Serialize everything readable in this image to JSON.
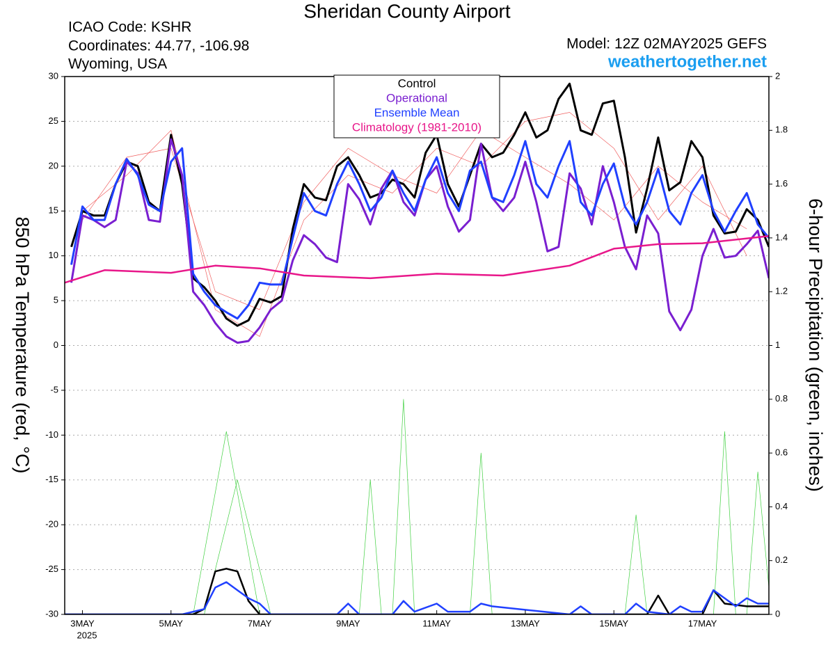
{
  "chart_data": {
    "type": "line",
    "title": "Sheridan County Airport",
    "info": [
      "ICAO Code: KSHR",
      "Coordinates: 44.77, -106.98",
      "Wyoming, USA"
    ],
    "model": "Model: 12Z 02MAY2025 GEFS",
    "site": "weathertogether.net",
    "ylabel": "850 hPa Temperature (red, °C)",
    "y2label": "6-hour Precipitation (green, inches)",
    "year_label": "2025",
    "grid": true,
    "xlim": [
      2.6,
      18.5
    ],
    "xticks": [
      {
        "value": 3,
        "label": "3MAY"
      },
      {
        "value": 5,
        "label": "5MAY"
      },
      {
        "value": 7,
        "label": "7MAY"
      },
      {
        "value": 9,
        "label": "9MAY"
      },
      {
        "value": 11,
        "label": "11MAY"
      },
      {
        "value": 13,
        "label": "13MAY"
      },
      {
        "value": 15,
        "label": "15MAY"
      },
      {
        "value": 17,
        "label": "17MAY"
      }
    ],
    "ylim": [
      -30,
      30
    ],
    "yticks": [
      -30,
      -25,
      -20,
      -15,
      -10,
      -5,
      0,
      5,
      10,
      15,
      20,
      25,
      30
    ],
    "y2lim": [
      0,
      2
    ],
    "y2ticks": [
      0,
      0.2,
      0.4,
      0.6,
      0.8,
      1,
      1.2,
      1.4,
      1.6,
      1.8,
      2
    ],
    "x": [
      2.75,
      3,
      3.25,
      3.5,
      3.75,
      4,
      4.25,
      4.5,
      4.75,
      5,
      5.25,
      5.5,
      5.75,
      6,
      6.25,
      6.5,
      6.75,
      7,
      7.25,
      7.5,
      7.75,
      8,
      8.25,
      8.5,
      8.75,
      9,
      9.25,
      9.5,
      9.75,
      10,
      10.25,
      10.5,
      10.75,
      11,
      11.25,
      11.5,
      11.75,
      12,
      12.25,
      12.5,
      12.75,
      13,
      13.25,
      13.5,
      13.75,
      14,
      14.25,
      14.5,
      14.75,
      15,
      15.25,
      15.5,
      15.75,
      16,
      16.25,
      16.5,
      16.75,
      17,
      17.25,
      17.5,
      17.75,
      18,
      18.25,
      18.5
    ],
    "series": [
      {
        "color": "#f06060",
        "x": [
          3,
          4,
          5,
          6,
          7,
          8,
          9,
          10,
          11,
          12,
          13,
          14,
          15,
          16,
          17,
          18
        ],
        "values": [
          15,
          19,
          24,
          4,
          1,
          14,
          19,
          17,
          22,
          20,
          25,
          26,
          22,
          14,
          20,
          10
        ]
      },
      {
        "color": "#f06060",
        "x": [
          3,
          4,
          5,
          6,
          7,
          8,
          9,
          10,
          11,
          12,
          13,
          14,
          15,
          16,
          17,
          18
        ],
        "values": [
          14,
          21,
          22,
          6,
          4,
          16,
          22,
          19,
          17,
          24,
          21,
          18,
          14,
          20,
          16,
          13
        ]
      },
      {
        "color": "#40d040",
        "axis": "y2",
        "x": [
          5.5,
          6.25,
          7,
          9.25,
          9.5,
          9.75,
          10,
          10.25,
          10.5,
          11.75,
          12,
          12.25,
          17.25,
          17.5,
          17.75
        ],
        "values": [
          0,
          0.68,
          0,
          0,
          0.5,
          0,
          0,
          0.8,
          0,
          0,
          0.6,
          0,
          0,
          0.68,
          0
        ]
      },
      {
        "color": "#40d040",
        "axis": "y2",
        "x": [
          5.75,
          6.5,
          7.25,
          15.25,
          15.5,
          15.75,
          18,
          18.25,
          18.5
        ],
        "values": [
          0,
          0.5,
          0,
          0,
          0.37,
          0,
          0,
          0.53,
          0.1
        ]
      },
      {
        "name": "Control",
        "color": "#000000",
        "values": [
          11,
          15,
          14.5,
          14.5,
          18,
          20.5,
          20,
          16,
          15,
          23.5,
          18,
          7.5,
          6.5,
          5,
          3,
          2.2,
          2.8,
          5.2,
          4.8,
          5.5,
          13,
          18,
          16.5,
          16.2,
          20,
          21,
          19,
          16.5,
          17,
          18.5,
          18,
          16.5,
          21.5,
          23.5,
          18,
          15.5,
          19,
          22.5,
          21,
          21.5,
          23.5,
          26,
          23.2,
          24,
          27.5,
          29.2,
          24,
          23.5,
          27,
          27.3,
          21,
          12.6,
          17.5,
          23.2,
          17.3,
          18.2,
          22.8,
          21,
          14.5,
          12.5,
          12.7,
          15.2,
          14,
          11
        ]
      },
      {
        "name": "Operational",
        "color": "#7a1fd0",
        "values": [
          7,
          14.5,
          14,
          13.2,
          14,
          20.5,
          19.2,
          14,
          13.8,
          23,
          19,
          6,
          4.5,
          2.5,
          1,
          0.3,
          0.5,
          2,
          4,
          5,
          9.5,
          12.3,
          11.3,
          9.8,
          9.3,
          18,
          16.3,
          13.5,
          17.5,
          19.5,
          16,
          14.5,
          18.5,
          20,
          15.5,
          12.7,
          14,
          22.5,
          16.5,
          15,
          16.5,
          20.5,
          16,
          10.5,
          11,
          19.2,
          17.5,
          13.5,
          20,
          16,
          11,
          8.5,
          14.5,
          12.5,
          3.8,
          1.7,
          4,
          10,
          13,
          9.8,
          10,
          11.3,
          12.8,
          7.5
        ]
      },
      {
        "name": "Ensemble Mean",
        "color": "#2040ff",
        "values": [
          9,
          15.5,
          14,
          14,
          18,
          20.8,
          19,
          15.7,
          15,
          20.5,
          22,
          8,
          6,
          4.5,
          3.7,
          3,
          4.5,
          7,
          6.8,
          6.8,
          12,
          17,
          15,
          14.5,
          18,
          20.5,
          18,
          15,
          16.5,
          19.5,
          17,
          15,
          18.5,
          21,
          17,
          15,
          19.5,
          20.5,
          16.5,
          16,
          19,
          22.8,
          18,
          16.5,
          20,
          22.8,
          16,
          14.5,
          18,
          20.3,
          15.5,
          13.5,
          16,
          19.7,
          15,
          13.5,
          17,
          19,
          15,
          12.7,
          15,
          17,
          13.5,
          12
        ]
      },
      {
        "name": "Climatology (1981-2010)",
        "color": "#e8178a",
        "x": [
          2.6,
          3.5,
          5,
          6,
          7,
          8,
          9.5,
          11,
          12.5,
          14,
          15,
          16,
          17,
          18.5
        ],
        "values": [
          7,
          8.4,
          8.1,
          8.9,
          8.6,
          7.8,
          7.5,
          8,
          7.8,
          8.9,
          10.8,
          11.3,
          11.4,
          12.2
        ]
      },
      {
        "color": "#000000",
        "axis": "y2",
        "x": [
          2.6,
          5.5,
          5.75,
          6,
          6.25,
          6.5,
          6.75,
          7,
          15.75,
          16,
          16.25,
          17,
          17.25,
          17.5,
          18,
          18.5
        ],
        "values": [
          0,
          0,
          0.02,
          0.16,
          0.17,
          0.16,
          0.05,
          0,
          0,
          0.07,
          0,
          0,
          0.09,
          0.04,
          0.03,
          0.03
        ]
      },
      {
        "color": "#2040ff",
        "axis": "y2",
        "x": [
          2.6,
          5.25,
          5.75,
          6,
          6.25,
          6.5,
          6.75,
          7,
          7.25,
          8.75,
          9,
          9.25,
          10,
          10.25,
          10.5,
          11,
          11.25,
          11.75,
          12,
          12.25,
          14,
          14.25,
          14.5,
          15.25,
          15.5,
          15.75,
          16.25,
          16.5,
          16.75,
          17,
          17.25,
          17.5,
          17.75,
          18,
          18.25,
          18.5
        ],
        "values": [
          0,
          0,
          0.02,
          0.1,
          0.12,
          0.09,
          0.06,
          0.04,
          0,
          0,
          0.04,
          0,
          0,
          0.05,
          0.01,
          0.04,
          0.01,
          0.01,
          0.04,
          0.03,
          0,
          0.03,
          0,
          0,
          0.04,
          0.01,
          0,
          0.03,
          0.01,
          0.01,
          0.09,
          0.06,
          0.03,
          0.06,
          0.04,
          0.04
        ]
      }
    ]
  }
}
